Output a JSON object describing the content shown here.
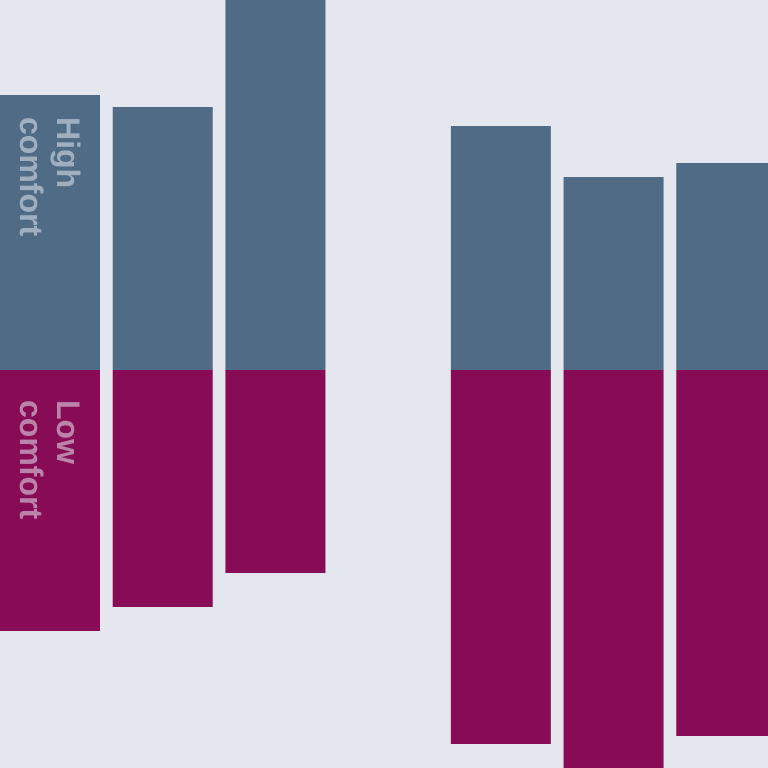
{
  "chart_data": {
    "type": "bar",
    "categories": [
      null,
      null,
      null,
      null,
      null,
      null,
      null
    ],
    "series": [
      {
        "name": "High comfort",
        "color": "#506b85",
        "values": [
          275,
          263,
          370,
          null,
          244,
          193,
          207
        ]
      },
      {
        "name": "Low comfort",
        "color": "#870b55",
        "values": [
          -261,
          -237,
          -203,
          null,
          -374,
          -398,
          -366
        ]
      }
    ],
    "ylim": [
      -398,
      370
    ]
  }
}
